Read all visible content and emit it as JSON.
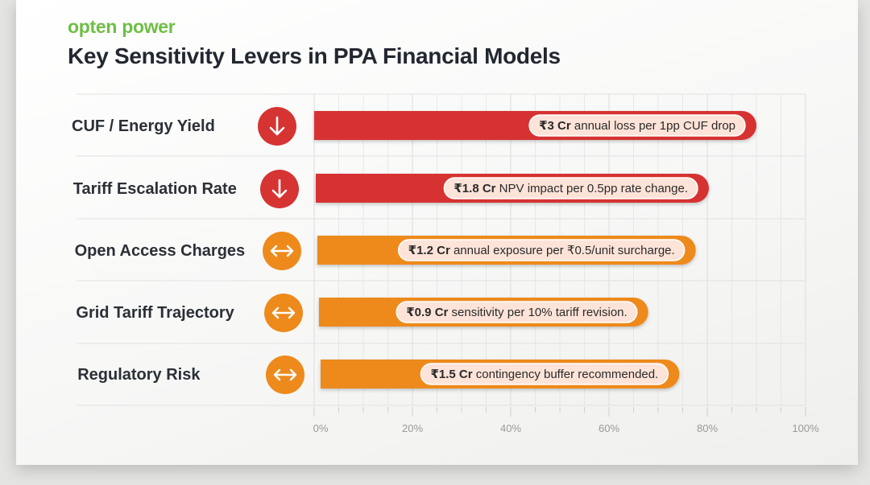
{
  "brand": "opten power",
  "title": "Key Sensitivity Levers in PPA Financial Models",
  "colors": {
    "red": "#d63333",
    "orange": "#ee8a1c",
    "pill_bg": "#fde3d8",
    "grid": "#e1e1e1"
  },
  "chart_data": {
    "type": "bar",
    "orientation": "horizontal",
    "categories": [
      "CUF / Energy Yield",
      "Tariff Escalation Rate",
      "Open Access Charges",
      "Grid Tariff Trajectory",
      "Regulatory Risk"
    ],
    "values": [
      90,
      80,
      77,
      67,
      73
    ],
    "bar_colors": [
      "red",
      "red",
      "orange",
      "orange",
      "orange"
    ],
    "icons": [
      "arrow-down-icon",
      "arrow-down-icon",
      "arrow-left-right-icon",
      "arrow-left-right-icon",
      "arrow-left-right-icon"
    ],
    "annotations": [
      {
        "bold": "₹3 Cr",
        "text": " annual loss per 1pp CUF drop"
      },
      {
        "bold": "₹1.8 Cr",
        "text": " NPV impact per 0.5pp rate change."
      },
      {
        "bold": "₹1.2 Cr",
        "text": " annual exposure per ₹0.5/unit surcharge."
      },
      {
        "bold": "₹0.9 Cr",
        "text": " sensitivity per 10% tariff revision."
      },
      {
        "bold": "₹1.5 Cr",
        "text": " contingency buffer recommended."
      }
    ],
    "x_ticks": [
      "0%",
      "20%",
      "40%",
      "60%",
      "80%",
      "100%"
    ],
    "xlim": [
      0,
      100
    ],
    "grid": true,
    "legend": false
  }
}
